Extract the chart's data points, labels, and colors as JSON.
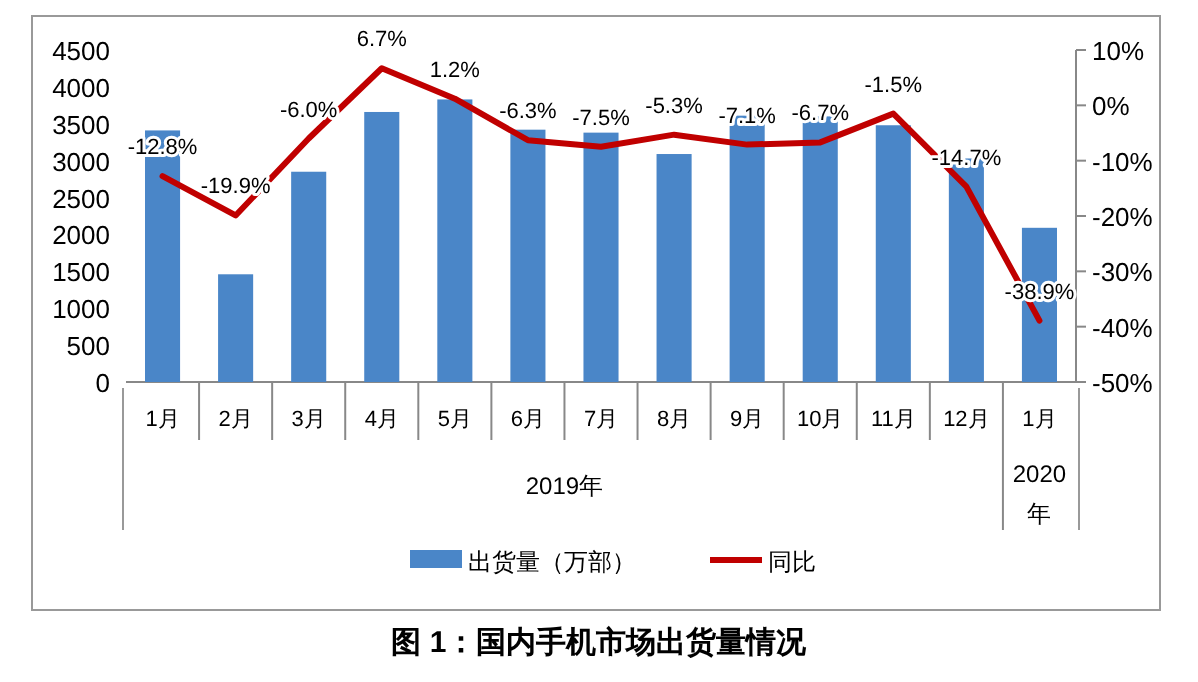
{
  "chart_data": {
    "type": "bar",
    "title": "图 1：国内手机市场出货量情况",
    "categories": [
      "1月",
      "2月",
      "3月",
      "4月",
      "5月",
      "6月",
      "7月",
      "8月",
      "9月",
      "10月",
      "11月",
      "12月",
      "1月"
    ],
    "series": [
      {
        "name": "出货量（万部）",
        "color": "#4a86c8",
        "values": [
          3410,
          1460,
          2850,
          3660,
          3830,
          3420,
          3380,
          3090,
          3610,
          3600,
          3480,
          3030,
          2090
        ]
      },
      {
        "name": "同比",
        "type": "line",
        "axis": "y2",
        "color": "#c00000",
        "values": [
          -12.8,
          -19.9,
          -6.0,
          6.7,
          1.2,
          -6.3,
          -7.5,
          -5.3,
          -7.1,
          -6.7,
          -1.5,
          -14.7,
          -38.9
        ],
        "value_labels": [
          "-12.8%",
          "-19.9%",
          "-6.0%",
          "6.7%",
          "1.2%",
          "-6.3%",
          "-7.5%",
          "-5.3%",
          "-7.1%",
          "-6.7%",
          "-1.5%",
          "-14.7%",
          "-38.9%"
        ]
      }
    ],
    "ylim": [
      0,
      4500
    ],
    "yticks": [
      0,
      500,
      1000,
      1500,
      2000,
      2500,
      3000,
      3500,
      4000,
      4500
    ],
    "y2lim": [
      -50,
      10
    ],
    "y2ticks": [
      {
        "value": -50,
        "label": "-50%"
      },
      {
        "value": -40,
        "label": "-40%"
      },
      {
        "value": -30,
        "label": "-30%"
      },
      {
        "value": -20,
        "label": "-20%"
      },
      {
        "value": -10,
        "label": "-10%"
      },
      {
        "value": 0,
        "label": "0%"
      },
      {
        "value": 10,
        "label": "10%"
      }
    ],
    "annotations": [
      "2019年",
      "2020年"
    ],
    "legend": "bottom",
    "grid": false
  }
}
